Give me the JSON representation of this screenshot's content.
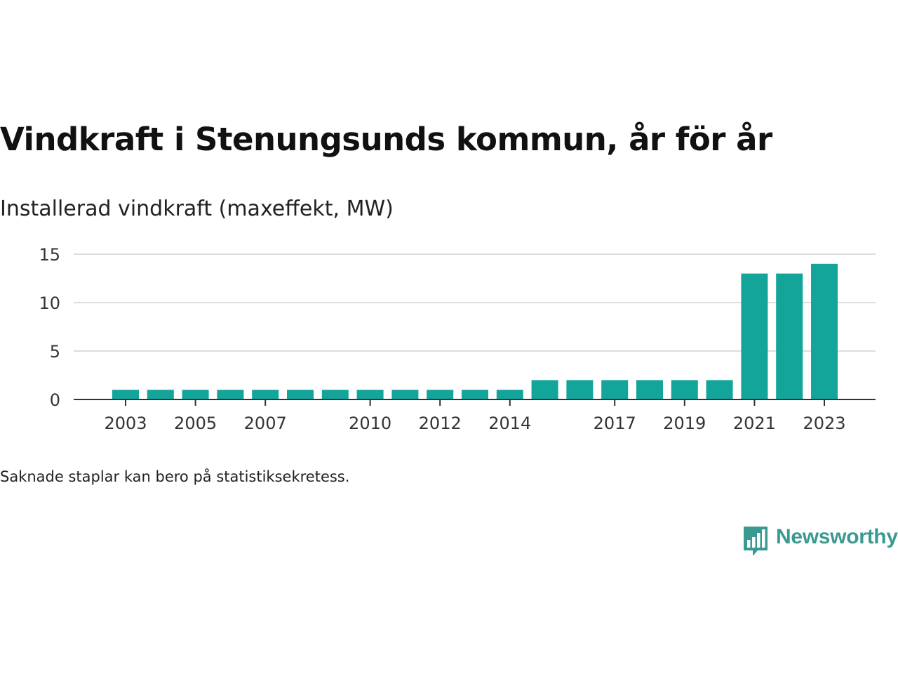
{
  "header": {
    "title": "Vindkraft i Stenungsunds kommun, år för år",
    "subtitle": "Installerad vindkraft (maxeffekt, MW)"
  },
  "footer": {
    "note": "Saknade staplar kan bero på statistiksekretess.",
    "brand": "Newsworthy"
  },
  "colors": {
    "bar": "#13a49a",
    "grid": "#dddddd",
    "axis": "#333333",
    "brand": "#3a9a92"
  },
  "icons": {
    "brand_logo": "bar-chart-speech-bubble-icon"
  },
  "chart_data": {
    "type": "bar",
    "categories": [
      2003,
      2004,
      2005,
      2006,
      2007,
      2008,
      2009,
      2010,
      2011,
      2012,
      2013,
      2014,
      2015,
      2016,
      2017,
      2018,
      2019,
      2020,
      2021,
      2022,
      2023
    ],
    "values": [
      1,
      1,
      1,
      1,
      1,
      1,
      1,
      1,
      1,
      1,
      1,
      1,
      2,
      2,
      2,
      2,
      2,
      2,
      13,
      13,
      14
    ],
    "x_tick_labels": [
      "2003",
      "2005",
      "2007",
      "2010",
      "2012",
      "2014",
      "2017",
      "2019",
      "2021",
      "2023"
    ],
    "y_ticks": [
      0,
      5,
      10,
      15
    ],
    "ylim": [
      0,
      15
    ],
    "grid": true,
    "legend": "none"
  }
}
